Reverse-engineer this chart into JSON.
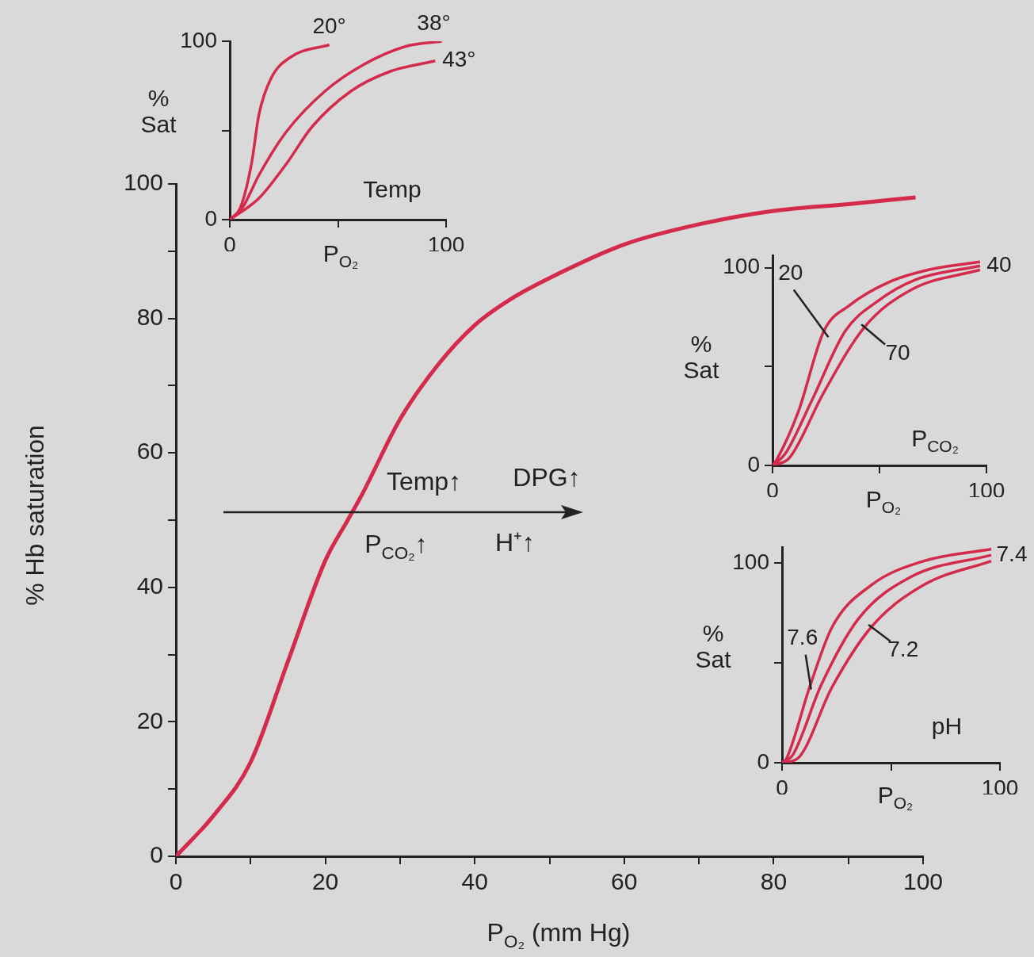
{
  "chart_data": [
    {
      "type": "line",
      "xlabel": "P$_{O₂}$ (mm Hg)",
      "ylabel": "% Hb saturation",
      "x": [
        0,
        5,
        10,
        15,
        20,
        23,
        25,
        30,
        35,
        40,
        45,
        50,
        60,
        70,
        80,
        90,
        99
      ],
      "series": [
        {
          "color": "#d42a4c",
          "values": [
            0,
            6,
            14,
            29,
            44,
            50,
            54,
            65,
            73,
            79,
            83,
            86,
            91,
            94,
            96,
            97,
            98
          ]
        }
      ],
      "xlim": [
        0,
        100
      ],
      "ylim": [
        0,
        100
      ],
      "xticks": [
        0,
        {
          "value": 10,
          "label": null
        },
        20,
        {
          "value": 30,
          "label": null
        },
        40,
        {
          "value": 50,
          "label": null
        },
        60,
        {
          "value": 70,
          "label": null
        },
        80,
        {
          "value": 90,
          "label": null
        },
        100
      ],
      "yticks": [
        0,
        {
          "value": 10,
          "label": null
        },
        20,
        {
          "value": 30,
          "label": null
        },
        40,
        {
          "value": 50,
          "label": null
        },
        60,
        {
          "value": 70,
          "label": null
        },
        80,
        {
          "value": 90,
          "label": null
        },
        100
      ],
      "annotations": [
        "Temp↑",
        "DPG↑",
        "P$_{CO₂}$↑",
        "H⁺↑"
      ]
    },
    {
      "type": "line",
      "xlabel": "P$_{O₂}$",
      "ylabel": "% Sat",
      "series": [
        {
          "name": "20°",
          "color": "#d42a4c",
          "x": [
            0,
            5,
            10,
            13.5,
            19,
            28,
            46
          ],
          "values": [
            0,
            7,
            31,
            59,
            79,
            91,
            98
          ]
        },
        {
          "name": "38°",
          "color": "#d42a4c",
          "x": [
            0,
            6,
            13.5,
            26,
            44,
            62,
            81,
            98
          ],
          "values": [
            0,
            7,
            25,
            49,
            72,
            87,
            97,
            100
          ]
        },
        {
          "name": "43°",
          "color": "#d42a4c",
          "x": [
            0,
            13.5,
            26,
            38,
            56,
            74,
            95
          ],
          "values": [
            0,
            12,
            31,
            52,
            72,
            83,
            89
          ]
        }
      ],
      "xlim": [
        0,
        100
      ],
      "ylim": [
        0,
        100
      ],
      "xticks": [
        0,
        {
          "value": 50,
          "label": null
        },
        100
      ],
      "yticks": [
        0,
        {
          "value": 50,
          "label": null
        },
        100
      ],
      "annotations": [
        "Temp"
      ]
    },
    {
      "type": "line",
      "xlabel": "P$_{O₂}$",
      "ylabel": "% Sat",
      "series": [
        {
          "name": "20",
          "color": "#d42a4c",
          "x": [
            0,
            2,
            12,
            24,
            36,
            55,
            73,
            97
          ],
          "values": [
            0,
            3,
            27,
            68,
            81,
            93,
            99,
            103
          ]
        },
        {
          "name": "40",
          "color": "#d42a4c",
          "x": [
            0,
            6,
            18,
            34,
            49,
            67,
            97
          ],
          "values": [
            0,
            6,
            32,
            68,
            83,
            94,
            101
          ]
        },
        {
          "name": "70",
          "color": "#d42a4c",
          "x": [
            0,
            8,
            24,
            43,
            65,
            97
          ],
          "values": [
            0,
            4,
            37,
            70,
            89,
            99
          ]
        }
      ],
      "xlim": [
        0,
        100
      ],
      "ylim": [
        0,
        106
      ],
      "xticks": [
        0,
        {
          "value": 50,
          "label": null
        },
        100
      ],
      "yticks": [
        0,
        {
          "value": 50,
          "label": null
        },
        100
      ],
      "annotations": [
        "P$_{CO₂}$"
      ]
    },
    {
      "type": "line",
      "xlabel": "P$_{O₂}$",
      "ylabel": "% Sat",
      "series": [
        {
          "name": "7.6",
          "color": "#d42a4c",
          "x": [
            0,
            2,
            13,
            23,
            41,
            65,
            96
          ],
          "values": [
            0,
            2,
            39,
            68,
            89,
            101,
            107
          ]
        },
        {
          "name": "7.4",
          "color": "#d42a4c",
          "x": [
            0,
            5,
            18,
            35,
            59,
            96
          ],
          "values": [
            0,
            4,
            39,
            72,
            93,
            104
          ]
        },
        {
          "name": "7.2",
          "color": "#d42a4c",
          "x": [
            0,
            7,
            23,
            41,
            65,
            96
          ],
          "values": [
            0,
            2,
            38,
            68,
            89,
            101
          ]
        }
      ],
      "xlim": [
        0,
        100
      ],
      "ylim": [
        0,
        108
      ],
      "xticks": [
        0,
        {
          "value": 50,
          "label": null
        },
        100
      ],
      "yticks": [
        0,
        {
          "value": 50,
          "label": null
        },
        100
      ],
      "annotations": [
        "pH"
      ]
    }
  ]
}
